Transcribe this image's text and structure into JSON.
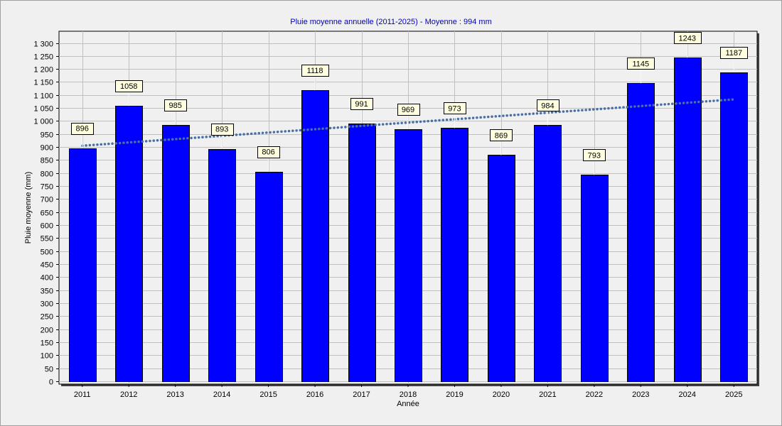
{
  "chart_data": {
    "type": "bar",
    "title": "Pluie moyenne annuelle (2011-2025) - Moyenne : 994 mm",
    "xlabel": "Année",
    "ylabel": "Pluie moyenne (mm)",
    "categories": [
      "2011",
      "2012",
      "2013",
      "2014",
      "2015",
      "2016",
      "2017",
      "2018",
      "2019",
      "2020",
      "2021",
      "2022",
      "2023",
      "2024",
      "2025"
    ],
    "values": [
      896,
      1058,
      985,
      893,
      806,
      1118,
      991,
      969,
      973,
      869,
      984,
      793,
      1145,
      1243,
      1187
    ],
    "data_labels": [
      "896",
      "1058",
      "985",
      "893",
      "806",
      "1118",
      "991",
      "969",
      "973",
      "869",
      "984",
      "793",
      "1145",
      "1243",
      "1187"
    ],
    "ylim": [
      0,
      1350
    ],
    "y_ticks": [
      0,
      50,
      100,
      150,
      200,
      250,
      300,
      350,
      400,
      450,
      500,
      550,
      600,
      650,
      700,
      750,
      800,
      850,
      900,
      950,
      1000,
      1050,
      1100,
      1150,
      1200,
      1250,
      1300
    ],
    "y_tick_labels": [
      "0",
      "50",
      "100",
      "150",
      "200",
      "250",
      "300",
      "350",
      "400",
      "450",
      "500",
      "550",
      "600",
      "650",
      "700",
      "750",
      "800",
      "850",
      "900",
      "950",
      "1 000",
      "1 050",
      "1 100",
      "1 150",
      "1 200",
      "1 250",
      "1 300"
    ],
    "trendline": {
      "type": "linear",
      "start": 905,
      "end": 1083,
      "color": "#4a6fa5",
      "style": "dotted"
    },
    "grid": true,
    "colors": {
      "bar": "#0000ff",
      "bar_border": "#000000",
      "title": "#0000c0",
      "label_box": "#ffffe0",
      "plot_background": "#f0f0f0",
      "grid": "#c0c0c0"
    }
  }
}
